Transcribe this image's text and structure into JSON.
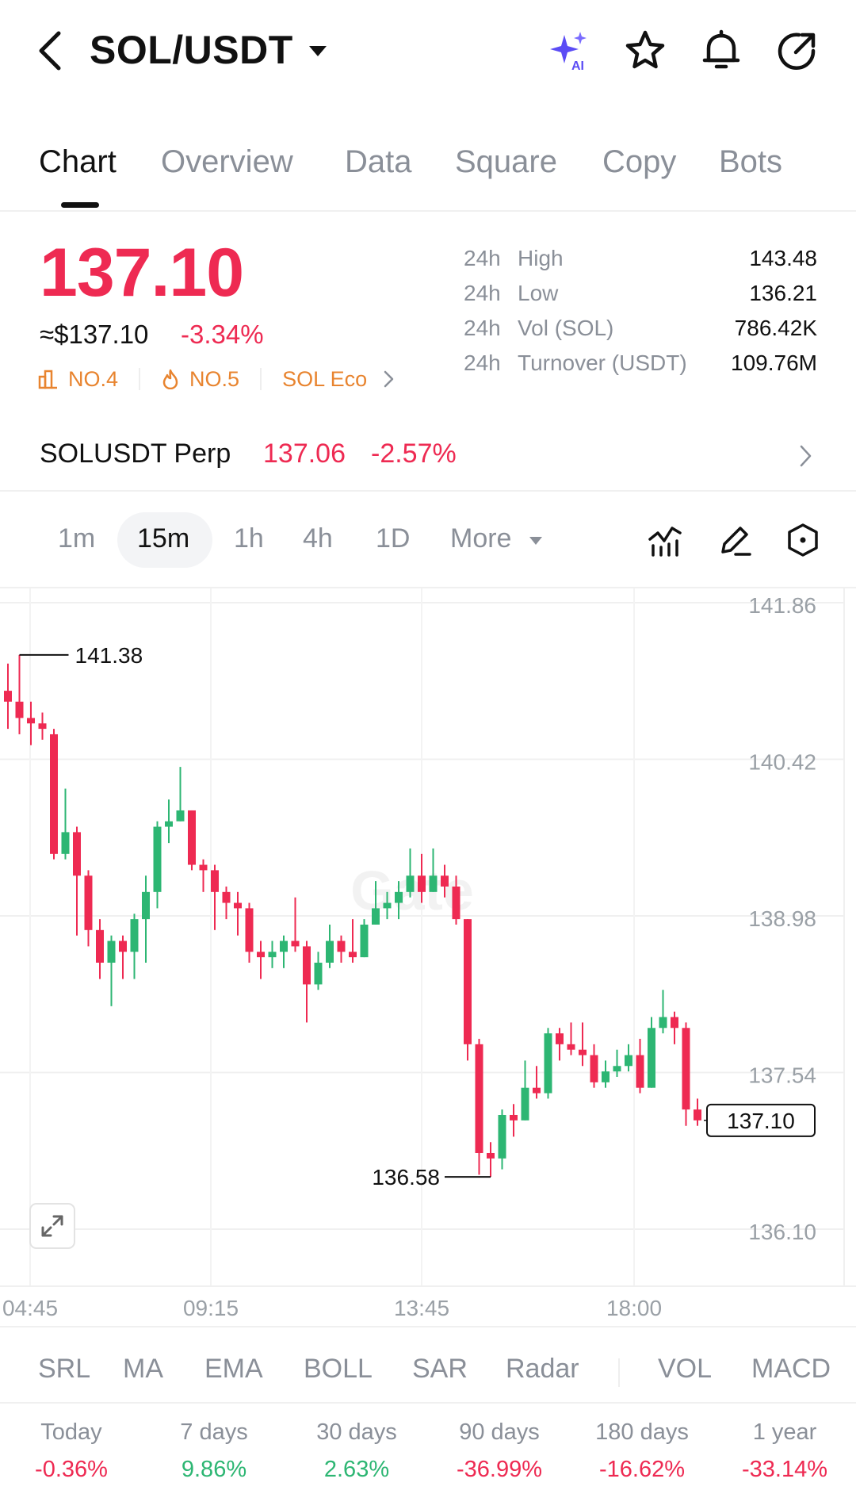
{
  "header": {
    "pair": "SOL/USDT",
    "icons": [
      "back-icon",
      "ai-sparkle-icon",
      "star-icon",
      "bell-icon",
      "share-icon"
    ],
    "ai_badge": "AI"
  },
  "tabs": [
    {
      "label": "Chart",
      "active": true
    },
    {
      "label": "Overview",
      "active": false
    },
    {
      "label": "Data",
      "active": false
    },
    {
      "label": "Square",
      "active": false
    },
    {
      "label": "Copy",
      "active": false
    },
    {
      "label": "Bots",
      "active": false
    }
  ],
  "price": {
    "last": "137.10",
    "usd": "≈$137.10",
    "change": "-3.34%",
    "ranks": [
      {
        "icon": "chart-rank-icon",
        "label": "NO.4"
      },
      {
        "icon": "fire-icon",
        "label": "NO.5"
      },
      {
        "icon": "chevron-right-icon",
        "label": "SOL Eco"
      }
    ]
  },
  "stats": [
    {
      "period": "24h",
      "label": "High",
      "value": "143.48"
    },
    {
      "period": "24h",
      "label": "Low",
      "value": "136.21"
    },
    {
      "period": "24h",
      "label": "Vol (SOL)",
      "value": "786.42K"
    },
    {
      "period": "24h",
      "label": "Turnover (USDT)",
      "value": "109.76M"
    }
  ],
  "perp": {
    "label": "SOLUSDT Perp",
    "price": "137.06",
    "change": "-2.57%"
  },
  "intervals": {
    "items": [
      "1m",
      "15m",
      "1h",
      "4h",
      "1D",
      "More"
    ],
    "active": "15m",
    "tools": [
      "indicator-icon",
      "pencil-icon",
      "settings-hexagon-icon"
    ]
  },
  "chart_data": {
    "type": "candlestick",
    "y_ticks": [
      "141.86",
      "140.42",
      "138.98",
      "137.54",
      "136.10"
    ],
    "ylim": [
      136.1,
      141.86
    ],
    "x_ticks": [
      "04:45",
      "09:15",
      "13:45",
      "18:00"
    ],
    "high_label": "141.38",
    "low_label": "136.58",
    "current_label": "137.10",
    "watermark": "Gate",
    "candles": [
      [
        141.05,
        140.95,
        141.3,
        140.7
      ],
      [
        140.95,
        140.8,
        141.38,
        140.65
      ],
      [
        140.8,
        140.75,
        140.95,
        140.55
      ],
      [
        140.75,
        140.7,
        140.85,
        140.6
      ],
      [
        140.65,
        139.55,
        140.7,
        139.5
      ],
      [
        139.55,
        139.75,
        140.15,
        139.5
      ],
      [
        139.75,
        139.35,
        139.8,
        138.8
      ],
      [
        139.35,
        138.85,
        139.4,
        138.7
      ],
      [
        138.85,
        138.55,
        138.95,
        138.4
      ],
      [
        138.55,
        138.75,
        138.8,
        138.15
      ],
      [
        138.75,
        138.65,
        138.8,
        138.4
      ],
      [
        138.65,
        138.95,
        139.0,
        138.4
      ],
      [
        138.95,
        139.2,
        139.35,
        138.55
      ],
      [
        139.2,
        139.8,
        139.85,
        139.05
      ],
      [
        139.8,
        139.85,
        140.05,
        139.65
      ],
      [
        139.85,
        139.95,
        140.35,
        139.85
      ],
      [
        139.95,
        139.45,
        139.95,
        139.4
      ],
      [
        139.45,
        139.4,
        139.5,
        139.2
      ],
      [
        139.4,
        139.2,
        139.45,
        138.85
      ],
      [
        139.2,
        139.1,
        139.25,
        138.95
      ],
      [
        139.1,
        139.05,
        139.2,
        138.8
      ],
      [
        139.05,
        138.65,
        139.1,
        138.55
      ],
      [
        138.65,
        138.6,
        138.75,
        138.4
      ],
      [
        138.6,
        138.65,
        138.75,
        138.5
      ],
      [
        138.65,
        138.75,
        138.8,
        138.5
      ],
      [
        138.75,
        138.7,
        139.15,
        138.65
      ],
      [
        138.7,
        138.35,
        138.75,
        138.0
      ],
      [
        138.35,
        138.55,
        138.65,
        138.3
      ],
      [
        138.55,
        138.75,
        138.9,
        138.5
      ],
      [
        138.75,
        138.65,
        138.8,
        138.55
      ],
      [
        138.65,
        138.6,
        138.95,
        138.55
      ],
      [
        138.6,
        138.9,
        138.95,
        138.6
      ],
      [
        138.9,
        139.05,
        139.3,
        138.9
      ],
      [
        139.05,
        139.1,
        139.2,
        138.95
      ],
      [
        139.1,
        139.2,
        139.3,
        138.95
      ],
      [
        139.2,
        139.35,
        139.6,
        139.15
      ],
      [
        139.35,
        139.2,
        139.55,
        139.1
      ],
      [
        139.2,
        139.35,
        139.6,
        139.2
      ],
      [
        139.35,
        139.25,
        139.45,
        139.15
      ],
      [
        139.25,
        138.95,
        139.35,
        138.9
      ],
      [
        138.95,
        137.8,
        138.95,
        137.65
      ],
      [
        137.8,
        136.8,
        137.85,
        136.6
      ],
      [
        136.8,
        136.75,
        136.9,
        136.58
      ],
      [
        136.75,
        137.15,
        137.2,
        136.65
      ],
      [
        137.15,
        137.1,
        137.25,
        136.95
      ],
      [
        137.1,
        137.4,
        137.65,
        137.1
      ],
      [
        137.4,
        137.35,
        137.6,
        137.3
      ],
      [
        137.35,
        137.9,
        137.95,
        137.3
      ],
      [
        137.9,
        137.8,
        137.95,
        137.65
      ],
      [
        137.8,
        137.75,
        138.0,
        137.7
      ],
      [
        137.75,
        137.7,
        138.0,
        137.6
      ],
      [
        137.7,
        137.45,
        137.8,
        137.4
      ],
      [
        137.45,
        137.55,
        137.65,
        137.4
      ],
      [
        137.55,
        137.6,
        137.75,
        137.5
      ],
      [
        137.6,
        137.7,
        137.8,
        137.55
      ],
      [
        137.7,
        137.4,
        137.85,
        137.35
      ],
      [
        137.4,
        137.95,
        138.05,
        137.4
      ],
      [
        137.95,
        138.05,
        138.3,
        137.9
      ],
      [
        138.05,
        137.95,
        138.1,
        137.8
      ],
      [
        137.95,
        137.2,
        138.0,
        137.05
      ],
      [
        137.2,
        137.1,
        137.3,
        137.05
      ]
    ]
  },
  "indicators": {
    "items": [
      "SRL",
      "MA",
      "EMA",
      "BOLL",
      "SAR",
      "Radar",
      "VOL",
      "MACD"
    ]
  },
  "performance": [
    {
      "label": "Today",
      "value": "-0.36%",
      "direction": "down"
    },
    {
      "label": "7 days",
      "value": "9.86%",
      "direction": "up"
    },
    {
      "label": "30 days",
      "value": "2.63%",
      "direction": "up"
    },
    {
      "label": "90 days",
      "value": "-36.99%",
      "direction": "down"
    },
    {
      "label": "180 days",
      "value": "-16.62%",
      "direction": "down"
    },
    {
      "label": "1 year",
      "value": "-33.14%",
      "direction": "down"
    }
  ],
  "colors": {
    "up": "#2db673",
    "down": "#ee2a52",
    "accent_orange": "#e8842f",
    "ai_purple": "#5b4cf5"
  }
}
